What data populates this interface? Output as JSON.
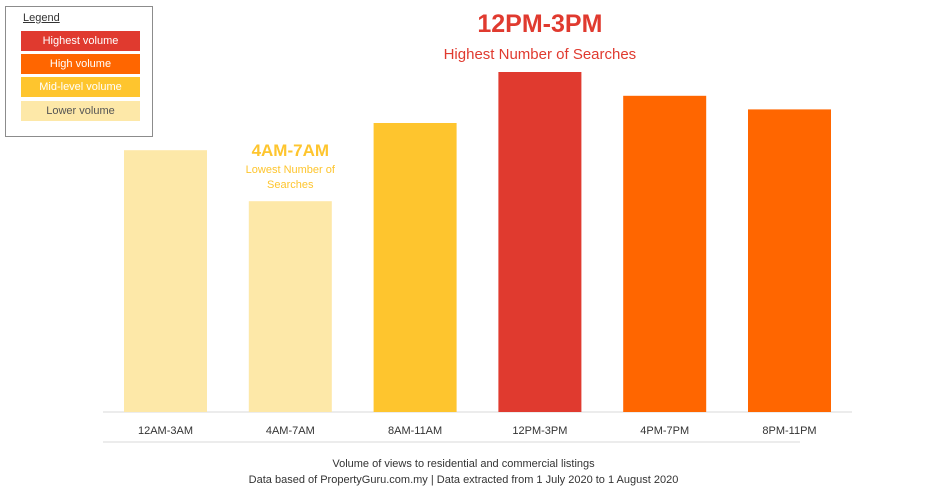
{
  "legend": {
    "title": "Legend",
    "items": [
      {
        "label": "Highest  volume",
        "color": "#e03a2f",
        "text_color": "#ffffff"
      },
      {
        "label": "High  volume",
        "color": "#ff6600",
        "text_color": "#ffffff"
      },
      {
        "label": "Mid-level  volume",
        "color": "#fec52e",
        "text_color": "#ffffff"
      },
      {
        "label": "Lower  volume",
        "color": "#fde8a8",
        "text_color": "#555555"
      }
    ]
  },
  "chart_data": {
    "type": "bar",
    "categories": [
      "12AM-3AM",
      "4AM-7AM",
      "8AM-11AM",
      "12PM-3PM",
      "4PM-7PM",
      "8PM-11PM"
    ],
    "values": [
      77,
      62,
      85,
      100,
      93,
      89
    ],
    "bar_colors": [
      "#fde8a8",
      "#fde8a8",
      "#fec52e",
      "#e03a2f",
      "#ff6600",
      "#ff6600"
    ],
    "ylim": [
      0,
      100
    ],
    "grid": false,
    "legend_position": "top-left",
    "annotations": [
      {
        "category": "12PM-3PM",
        "title": "12PM-3PM",
        "subtitle": "Highest Number of Searches",
        "color": "#e03a2f"
      },
      {
        "category": "4AM-7AM",
        "title": "4AM-7AM",
        "subtitle_lines": [
          "Lowest Number of",
          "Searches"
        ],
        "color": "#fec52e"
      }
    ]
  },
  "footer": {
    "line1": "Volume of views to residential and commercial listings",
    "line2": "Data based of PropertyGuru.com.my | Data extracted from 1 July 2020 to 1 August 2020"
  }
}
